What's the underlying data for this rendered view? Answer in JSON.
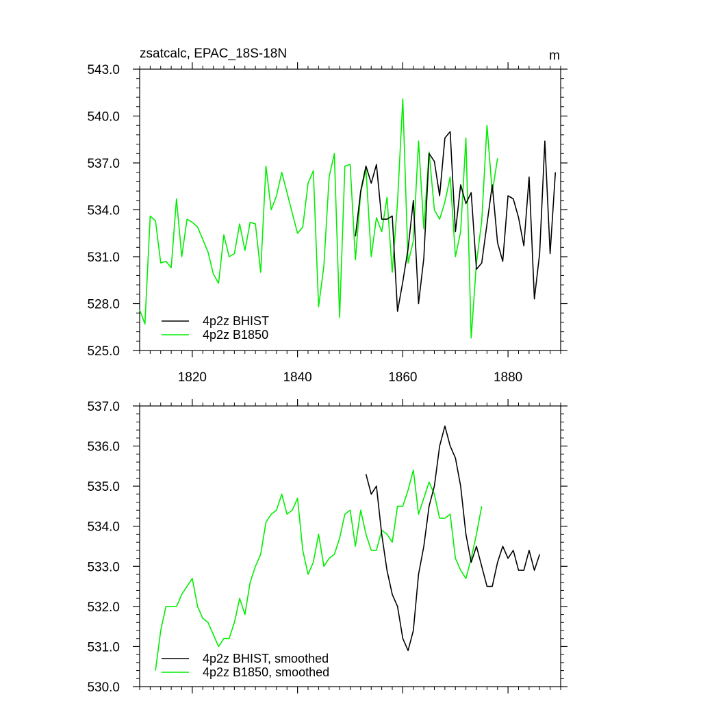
{
  "header": {
    "title": "zsatcalc, EPAC_18S-18N",
    "units": "m"
  },
  "chart_data": [
    {
      "type": "line",
      "title": "zsatcalc, EPAC_18S-18N",
      "ylabel": "m",
      "xlim": [
        1810,
        1890
      ],
      "ylim": [
        525,
        543
      ],
      "xticks": [
        1820,
        1840,
        1860,
        1880
      ],
      "xtick_labels": [
        "1820",
        "1840",
        "1860",
        "1880"
      ],
      "yticks": [
        525,
        528,
        531,
        534,
        537,
        540,
        543
      ],
      "ytick_labels": [
        "525.0",
        "528.0",
        "531.0",
        "534.0",
        "537.0",
        "540.0",
        "543.0"
      ],
      "legend_position": "bottom-left",
      "series": [
        {
          "name": "4p2z BHIST",
          "color": "#000000",
          "x_start": 1851,
          "values": [
            532.3,
            535.2,
            536.8,
            535.7,
            536.9,
            533.4,
            533.4,
            533.6,
            527.5,
            529.4,
            531.5,
            534.6,
            528.0,
            530.9,
            537.6,
            537.1,
            534.9,
            538.6,
            539.0,
            532.6,
            535.6,
            534.4,
            535.1,
            530.2,
            530.6,
            533.1,
            535.6,
            531.9,
            530.7,
            534.9,
            534.7,
            533.5,
            531.7,
            536.1,
            528.3,
            531.2,
            538.4,
            531.2,
            536.4
          ]
        },
        {
          "name": "4p2z B1850",
          "color": "#00ee00",
          "x_start": 1810,
          "values": [
            527.6,
            526.7,
            533.6,
            533.3,
            530.6,
            530.7,
            530.3,
            534.7,
            531.0,
            533.4,
            533.2,
            532.9,
            532.1,
            531.3,
            529.9,
            529.3,
            532.4,
            531.0,
            531.2,
            533.1,
            531.4,
            533.2,
            533.1,
            530.0,
            536.8,
            534.0,
            534.9,
            536.4,
            535.1,
            533.8,
            532.5,
            532.9,
            535.7,
            536.5,
            527.8,
            530.4,
            536.1,
            537.6,
            527.1,
            536.8,
            536.9,
            530.8,
            535.1,
            536.6,
            531.0,
            533.5,
            532.6,
            534.8,
            530.0,
            534.5,
            541.1,
            530.6,
            532.0,
            538.4,
            532.8,
            537.7,
            534.0,
            533.4,
            534.5,
            536.1,
            531.0,
            532.6,
            538.6,
            525.8,
            530.6,
            533.3,
            539.4,
            535.1,
            537.3
          ]
        }
      ]
    },
    {
      "type": "line",
      "title": "",
      "ylabel": "",
      "xlim": [
        1810,
        1890
      ],
      "ylim": [
        530,
        537
      ],
      "xticks": [
        1820,
        1840,
        1860,
        1880
      ],
      "xtick_labels": [],
      "yticks": [
        530,
        531,
        532,
        533,
        534,
        535,
        536,
        537
      ],
      "ytick_labels": [
        "530.0",
        "531.0",
        "532.0",
        "533.0",
        "534.0",
        "535.0",
        "536.0",
        "537.0"
      ],
      "legend_position": "bottom-left",
      "series": [
        {
          "name": "4p2z BHIST, smoothed",
          "color": "#000000",
          "x_start": 1853,
          "values": [
            535.3,
            534.8,
            535.0,
            533.8,
            532.9,
            532.3,
            532.0,
            531.2,
            530.9,
            531.4,
            532.8,
            533.5,
            534.5,
            535.0,
            536.0,
            536.5,
            536.0,
            535.7,
            535.0,
            533.8,
            533.1,
            533.5,
            533.0,
            532.5,
            532.5,
            533.1,
            533.5,
            533.2,
            533.4,
            532.9,
            532.9,
            533.4,
            532.9,
            533.3
          ]
        },
        {
          "name": "4p2z B1850, smoothed",
          "color": "#00ee00",
          "x_start": 1813,
          "values": [
            530.4,
            531.4,
            532.0,
            532.0,
            532.0,
            532.3,
            532.5,
            532.7,
            532.0,
            531.7,
            531.6,
            531.3,
            531.0,
            531.2,
            531.2,
            531.6,
            532.2,
            531.8,
            532.6,
            533.0,
            533.3,
            534.1,
            534.3,
            534.4,
            534.8,
            534.3,
            534.4,
            534.7,
            533.4,
            532.8,
            533.1,
            533.8,
            533.0,
            533.2,
            533.3,
            533.7,
            534.3,
            534.4,
            533.5,
            534.4,
            533.8,
            533.4,
            533.4,
            533.9,
            533.8,
            533.6,
            534.5,
            534.5,
            534.9,
            535.4,
            534.3,
            534.7,
            535.1,
            534.8,
            534.2,
            534.2,
            534.3,
            533.2,
            532.9,
            532.7,
            533.2,
            533.8,
            534.5
          ]
        }
      ]
    }
  ]
}
